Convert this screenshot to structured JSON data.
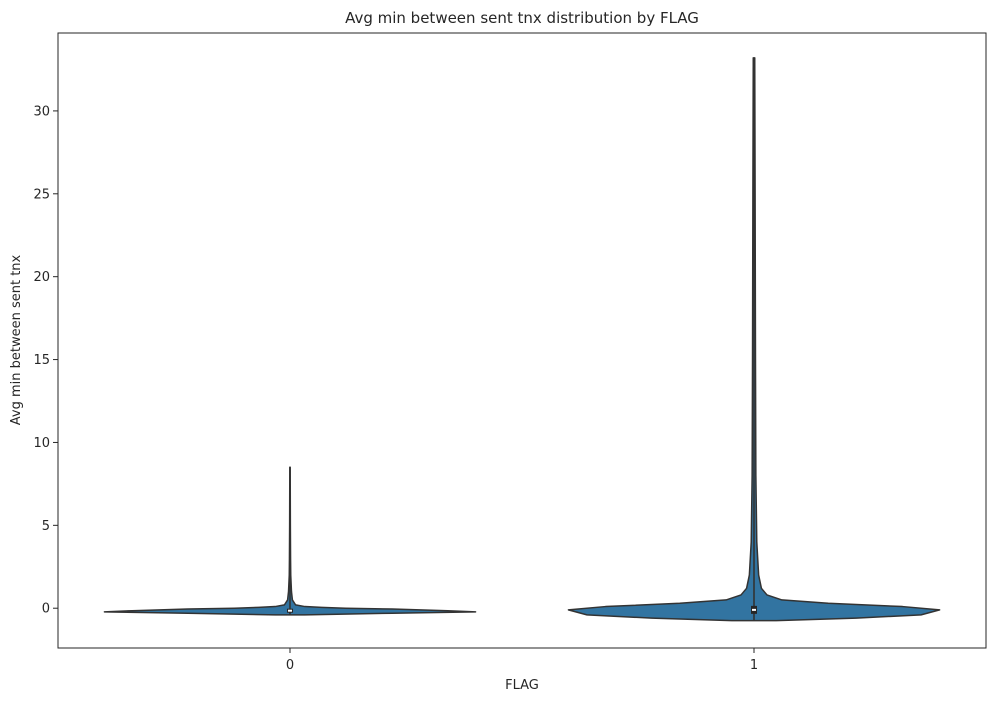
{
  "chart_data": {
    "type": "violin",
    "title": "Avg min between sent tnx distribution by FLAG",
    "xlabel": "FLAG",
    "ylabel": "Avg min between sent tnx",
    "categories": [
      "0",
      "1"
    ],
    "ylim": [
      -2.4,
      34.7
    ],
    "yticks": [
      0,
      5,
      10,
      15,
      20,
      25,
      30
    ],
    "ytick_labels": [
      "0",
      "5",
      "10",
      "15",
      "20",
      "25",
      "30"
    ],
    "grid": false,
    "colors": {
      "fill": "#3274a1",
      "edge": "#333333",
      "box": "#262626",
      "median": "#ffffff"
    },
    "violins": [
      {
        "category": "0",
        "min": -0.4,
        "max": 8.5,
        "median": -0.15,
        "q1": -0.18,
        "q3": -0.12,
        "profile": [
          [
            -0.4,
            0.08
          ],
          [
            -0.3,
            0.55
          ],
          [
            -0.22,
            1.0
          ],
          [
            -0.15,
            0.85
          ],
          [
            -0.05,
            0.55
          ],
          [
            0.0,
            0.3
          ],
          [
            0.05,
            0.17
          ],
          [
            0.1,
            0.08
          ],
          [
            0.2,
            0.03
          ],
          [
            0.5,
            0.013
          ],
          [
            1.0,
            0.008
          ],
          [
            2.0,
            0.004
          ],
          [
            3.0,
            0.003
          ],
          [
            5.0,
            0.002
          ],
          [
            8.5,
            0.001
          ]
        ]
      },
      {
        "category": "1",
        "min": -0.75,
        "max": 33.2,
        "median": -0.1,
        "q1": -0.25,
        "q3": 0.05,
        "profile": [
          [
            -0.75,
            0.12
          ],
          [
            -0.6,
            0.55
          ],
          [
            -0.4,
            0.9
          ],
          [
            -0.1,
            1.0
          ],
          [
            0.1,
            0.8
          ],
          [
            0.3,
            0.4
          ],
          [
            0.5,
            0.15
          ],
          [
            0.8,
            0.07
          ],
          [
            1.2,
            0.04
          ],
          [
            2.0,
            0.025
          ],
          [
            4.0,
            0.015
          ],
          [
            8.0,
            0.01
          ],
          [
            15.0,
            0.008
          ],
          [
            25.0,
            0.006
          ],
          [
            33.2,
            0.004
          ]
        ]
      }
    ]
  }
}
